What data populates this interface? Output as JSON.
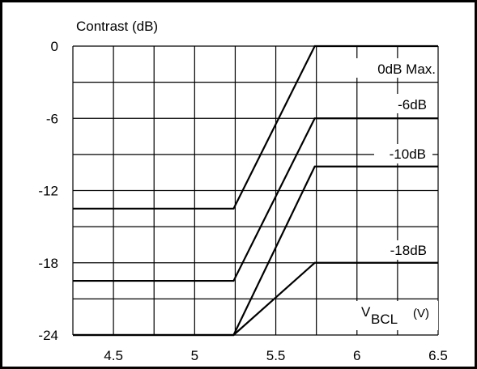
{
  "chart_data": {
    "type": "line",
    "ylabel": "Contrast (dB)",
    "xlabel_main": "V",
    "xlabel_sub": "BCL",
    "xlabel_unit": "(V)",
    "x_ticks": [
      "4.5",
      "5",
      "5.5",
      "6",
      "6.5"
    ],
    "y_ticks": [
      "0",
      "-6",
      "-12",
      "-18",
      "-24"
    ],
    "xlim": [
      4.25,
      6.5
    ],
    "ylim": [
      -24,
      0
    ],
    "grid": true,
    "series": [
      {
        "name": "0dB Max.",
        "x": [
          4.25,
          5.24,
          5.74,
          6.5
        ],
        "y": [
          -13.5,
          -13.5,
          0,
          0
        ]
      },
      {
        "name": "-6dB",
        "x": [
          4.25,
          5.24,
          5.74,
          6.5
        ],
        "y": [
          -19.5,
          -19.5,
          -6,
          -6
        ]
      },
      {
        "name": "-10dB",
        "x": [
          4.25,
          5.24,
          5.74,
          6.5
        ],
        "y": [
          -24,
          -24,
          -10,
          -10
        ]
      },
      {
        "name": "-18dB",
        "x": [
          4.25,
          5.24,
          5.74,
          6.5
        ],
        "y": [
          -24,
          -24,
          -18,
          -18
        ]
      }
    ]
  }
}
